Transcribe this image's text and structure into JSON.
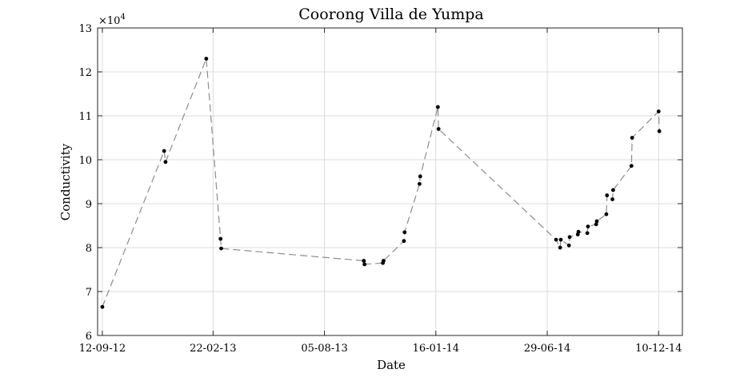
{
  "chart_data": {
    "type": "scatter",
    "title": "Coorong Villa de Yumpa",
    "xlabel": "Date",
    "ylabel": "Conductivity",
    "y_exponent_label": "×10",
    "y_exponent_power": "4",
    "xlim": [
      "2012-09-05",
      "2015-01-14"
    ],
    "ylim": [
      6,
      13
    ],
    "x_ticks": [
      {
        "date": "2012-09-12",
        "label": "12-09-12"
      },
      {
        "date": "2013-02-22",
        "label": "22-02-13"
      },
      {
        "date": "2013-08-05",
        "label": "05-08-13"
      },
      {
        "date": "2014-01-16",
        "label": "16-01-14"
      },
      {
        "date": "2014-06-29",
        "label": "29-06-14"
      },
      {
        "date": "2014-12-10",
        "label": "10-12-14"
      }
    ],
    "y_ticks": [
      6,
      7,
      8,
      9,
      10,
      11,
      12,
      13
    ],
    "grid": true,
    "series": [
      {
        "points": [
          {
            "x": "2012-09-12",
            "y": 6.65
          },
          {
            "x": "2012-12-12",
            "y": 10.2
          },
          {
            "x": "2012-12-14",
            "y": 9.95
          },
          {
            "x": "2013-02-12",
            "y": 12.3
          },
          {
            "x": "2013-03-05",
            "y": 8.2
          },
          {
            "x": "2013-03-06",
            "y": 7.98
          },
          {
            "x": "2013-10-02",
            "y": 7.7
          },
          {
            "x": "2013-10-03",
            "y": 7.62
          },
          {
            "x": "2013-10-30",
            "y": 7.65
          },
          {
            "x": "2013-10-31",
            "y": 7.7
          },
          {
            "x": "2013-11-30",
            "y": 8.15
          },
          {
            "x": "2013-12-01",
            "y": 8.35
          },
          {
            "x": "2013-12-23",
            "y": 9.45
          },
          {
            "x": "2013-12-24",
            "y": 9.62
          },
          {
            "x": "2014-01-19",
            "y": 11.2
          },
          {
            "x": "2014-01-20",
            "y": 10.7
          },
          {
            "x": "2014-07-12",
            "y": 8.18
          },
          {
            "x": "2014-07-18",
            "y": 8.0
          },
          {
            "x": "2014-07-19",
            "y": 8.18
          },
          {
            "x": "2014-07-31",
            "y": 8.05
          },
          {
            "x": "2014-08-01",
            "y": 8.24
          },
          {
            "x": "2014-08-13",
            "y": 8.3
          },
          {
            "x": "2014-08-14",
            "y": 8.36
          },
          {
            "x": "2014-08-27",
            "y": 8.33
          },
          {
            "x": "2014-08-28",
            "y": 8.48
          },
          {
            "x": "2014-09-09",
            "y": 8.53
          },
          {
            "x": "2014-09-10",
            "y": 8.6
          },
          {
            "x": "2014-09-24",
            "y": 8.76
          },
          {
            "x": "2014-09-25",
            "y": 9.19
          },
          {
            "x": "2014-10-03",
            "y": 9.1
          },
          {
            "x": "2014-10-04",
            "y": 9.31
          },
          {
            "x": "2014-10-31",
            "y": 9.86
          },
          {
            "x": "2014-11-01",
            "y": 10.5
          },
          {
            "x": "2014-12-10",
            "y": 11.1
          },
          {
            "x": "2014-12-11",
            "y": 10.65
          }
        ]
      }
    ]
  }
}
